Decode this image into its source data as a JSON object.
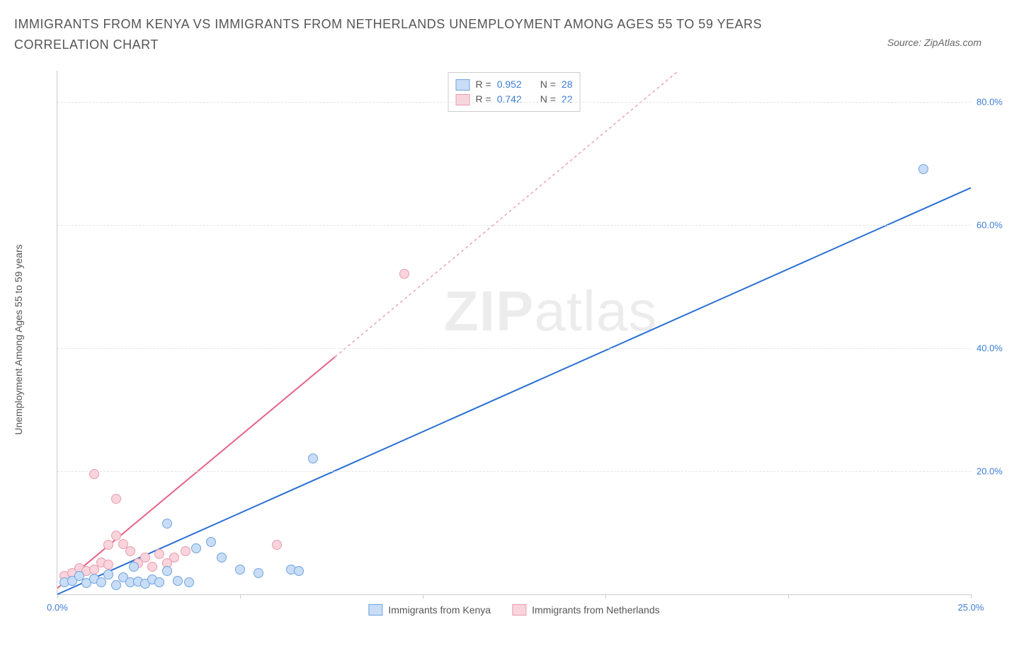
{
  "title": "IMMIGRANTS FROM KENYA VS IMMIGRANTS FROM NETHERLANDS UNEMPLOYMENT AMONG AGES 55 TO 59 YEARS CORRELATION CHART",
  "source_credit": "Source: ZipAtlas.com",
  "watermark_a": "ZIP",
  "watermark_b": "atlas",
  "y_axis_label": "Unemployment Among Ages 55 to 59 years",
  "chart": {
    "type": "scatter-with-regression",
    "background_color": "#ffffff",
    "grid_color": "#e5e5e5",
    "axis_color": "#cccccc",
    "tick_label_color": "#3b7dd8",
    "axis_label_color": "#555555",
    "xlim": [
      0,
      25
    ],
    "ylim": [
      0,
      85
    ],
    "x_ticks": [
      0,
      5,
      10,
      15,
      20,
      25
    ],
    "x_tick_labels": [
      "0.0%",
      "",
      "",
      "",
      "",
      "25.0%"
    ],
    "y_ticks": [
      20,
      40,
      60,
      80
    ],
    "y_tick_labels": [
      "20.0%",
      "40.0%",
      "60.0%",
      "80.0%"
    ],
    "marker_radius": 6,
    "marker_stroke_width": 1
  },
  "series": [
    {
      "name": "Immigrants from Kenya",
      "fill_color": "#c9ddf6",
      "stroke_color": "#6fa3e0",
      "line_color": "#2a6fd6",
      "line_dash": "none",
      "line_width": 2,
      "reg_line": {
        "x1": 0,
        "y1": 0,
        "x2": 25,
        "y2": 66
      },
      "points": [
        [
          0.2,
          2.0
        ],
        [
          0.4,
          2.2
        ],
        [
          0.6,
          3.0
        ],
        [
          0.8,
          1.8
        ],
        [
          1.0,
          2.5
        ],
        [
          1.2,
          2.0
        ],
        [
          1.4,
          3.2
        ],
        [
          1.6,
          1.5
        ],
        [
          1.8,
          2.8
        ],
        [
          2.0,
          2.0
        ],
        [
          2.2,
          2.1
        ],
        [
          2.4,
          1.7
        ],
        [
          2.6,
          2.4
        ],
        [
          2.8,
          2.0
        ],
        [
          3.0,
          3.8
        ],
        [
          3.3,
          2.2
        ],
        [
          3.6,
          1.9
        ],
        [
          3.0,
          11.5
        ],
        [
          3.8,
          7.5
        ],
        [
          4.5,
          6.0
        ],
        [
          5.0,
          4.0
        ],
        [
          5.5,
          3.5
        ],
        [
          6.4,
          4.0
        ],
        [
          6.6,
          3.8
        ],
        [
          7.0,
          22.0
        ],
        [
          23.7,
          69.0
        ],
        [
          4.2,
          8.5
        ],
        [
          2.1,
          4.5
        ]
      ]
    },
    {
      "name": "Immigrants from Netherlands",
      "fill_color": "#f9d4dc",
      "stroke_color": "#e89cae",
      "line_color": "#e66385",
      "line_dash": "4 4",
      "line_width": 1.5,
      "reg_line": {
        "x1": 0,
        "y1": 1,
        "x2": 17,
        "y2": 85
      },
      "reg_line_solid_until_x": 7.6,
      "points": [
        [
          0.2,
          3.0
        ],
        [
          0.4,
          3.5
        ],
        [
          0.6,
          4.2
        ],
        [
          0.8,
          3.8
        ],
        [
          1.0,
          4.0
        ],
        [
          1.2,
          5.2
        ],
        [
          1.4,
          4.8
        ],
        [
          1.4,
          8.0
        ],
        [
          1.6,
          9.5
        ],
        [
          1.6,
          15.5
        ],
        [
          1.8,
          8.2
        ],
        [
          1.0,
          19.5
        ],
        [
          2.0,
          7.0
        ],
        [
          2.2,
          5.0
        ],
        [
          2.4,
          6.0
        ],
        [
          2.6,
          4.5
        ],
        [
          2.8,
          6.5
        ],
        [
          3.0,
          5.0
        ],
        [
          3.2,
          6.0
        ],
        [
          3.5,
          7.0
        ],
        [
          6.0,
          8.0
        ],
        [
          9.5,
          52.0
        ]
      ]
    }
  ],
  "stats_legend": {
    "rows": [
      {
        "swatch_fill": "#c9ddf6",
        "swatch_border": "#6fa3e0",
        "r_label": "R =",
        "r": "0.952",
        "n_label": "N =",
        "n": "28"
      },
      {
        "swatch_fill": "#f9d4dc",
        "swatch_border": "#e89cae",
        "r_label": "R =",
        "r": "0.742",
        "n_label": "N =",
        "n": "22"
      }
    ]
  },
  "bottom_legend": [
    {
      "swatch_fill": "#c9ddf6",
      "swatch_border": "#6fa3e0",
      "label": "Immigrants from Kenya"
    },
    {
      "swatch_fill": "#f9d4dc",
      "swatch_border": "#e89cae",
      "label": "Immigrants from Netherlands"
    }
  ]
}
